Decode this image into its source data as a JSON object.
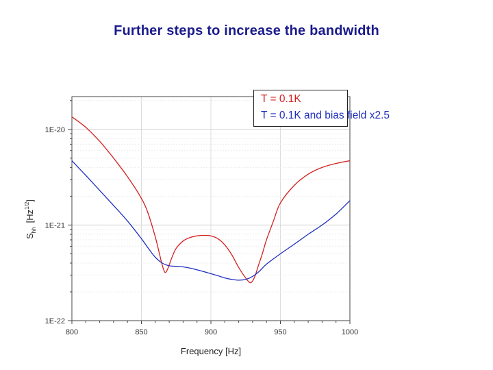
{
  "slide": {
    "title": "Further steps to increase the bandwidth"
  },
  "chart_data": {
    "type": "line",
    "xlabel": "Frequency  [Hz]",
    "ylabel_main": "S",
    "ylabel_sub": "hh",
    "ylabel_unit": "[Hz",
    "ylabel_exp": "1/2",
    "ylabel_close": "]",
    "x_ticks": [
      "800",
      "850",
      "900",
      "950",
      "1000"
    ],
    "y_ticks": [
      "1E-20",
      "1E-21",
      "1E-22"
    ],
    "xlim": [
      800,
      1000
    ],
    "ylim": [
      1e-22,
      2.2e-20
    ],
    "y_scale": "log",
    "grid": true,
    "legend_placement": "top-right",
    "series": [
      {
        "name": "T = 0.1K",
        "color": "#d42020",
        "x": [
          800,
          810,
          820,
          830,
          840,
          850,
          855,
          860,
          863,
          865,
          867,
          869,
          872,
          875,
          880,
          885,
          890,
          895,
          900,
          905,
          910,
          915,
          920,
          925,
          928,
          930,
          932,
          934,
          937,
          940,
          945,
          950,
          960,
          970,
          980,
          990,
          1000
        ],
        "y": [
          1.35e-20,
          1.05e-20,
          7.5e-21,
          5e-21,
          3.2e-21,
          1.9e-21,
          1.3e-21,
          7.5e-22,
          5e-22,
          3.8e-22,
          3.2e-22,
          3.5e-22,
          4.6e-22,
          5.7e-22,
          6.8e-22,
          7.4e-22,
          7.7e-22,
          7.8e-22,
          7.7e-22,
          7.2e-22,
          6.2e-22,
          4.9e-22,
          3.6e-22,
          2.8e-22,
          2.5e-22,
          2.6e-22,
          3e-22,
          3.7e-22,
          5e-22,
          7e-22,
          1.1e-21,
          1.7e-21,
          2.6e-21,
          3.4e-21,
          4e-21,
          4.4e-21,
          4.7e-21
        ]
      },
      {
        "name": "T = 0.1K and bias field x2.5",
        "color": "#1f2fbf",
        "x": [
          800,
          810,
          820,
          830,
          840,
          850,
          855,
          860,
          865,
          870,
          875,
          880,
          885,
          890,
          895,
          900,
          905,
          910,
          915,
          920,
          925,
          930,
          935,
          940,
          950,
          960,
          970,
          980,
          990,
          1000
        ],
        "y": [
          4.7e-21,
          3.3e-21,
          2.3e-21,
          1.6e-21,
          1.1e-21,
          7.2e-22,
          5.7e-22,
          4.6e-22,
          4e-22,
          3.75e-22,
          3.7e-22,
          3.65e-22,
          3.55e-22,
          3.4e-22,
          3.25e-22,
          3.1e-22,
          2.95e-22,
          2.8e-22,
          2.7e-22,
          2.65e-22,
          2.7e-22,
          2.9e-22,
          3.3e-22,
          3.9e-22,
          5e-22,
          6.3e-22,
          8e-22,
          1e-21,
          1.3e-21,
          1.8e-21
        ]
      }
    ]
  }
}
